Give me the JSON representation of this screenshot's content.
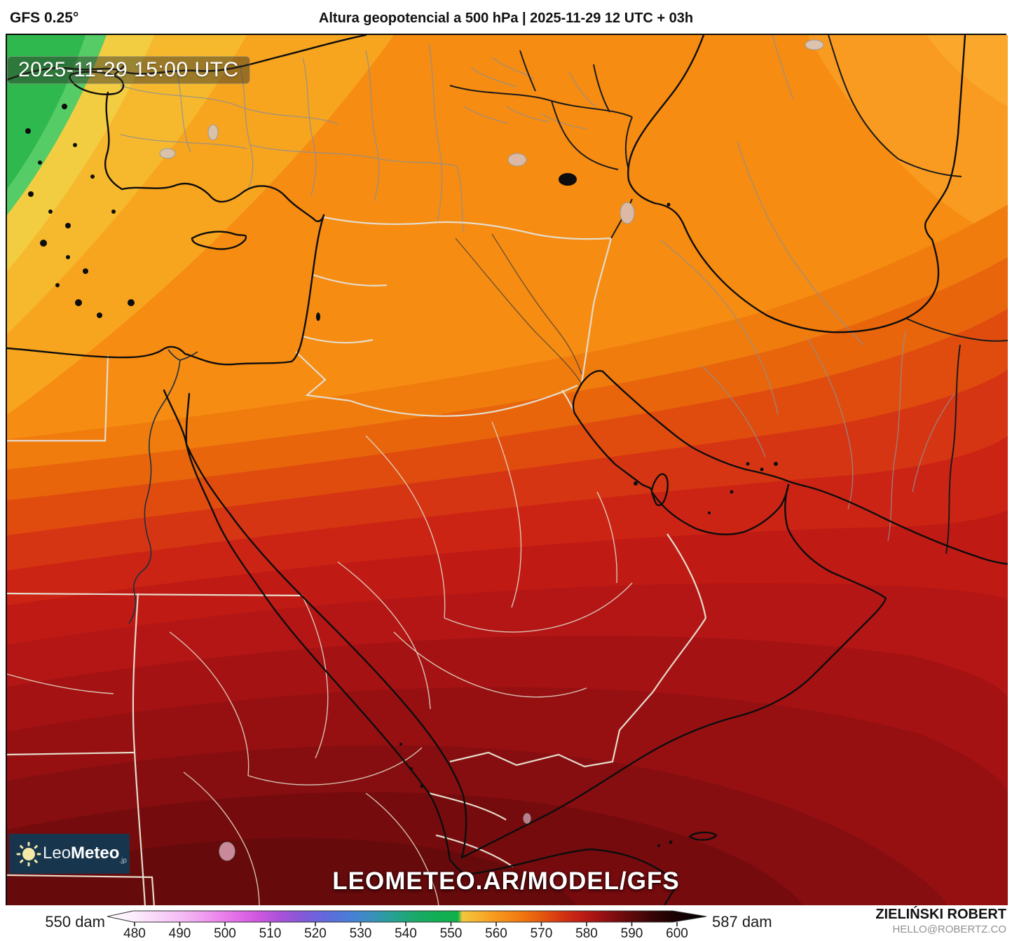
{
  "header": {
    "model": "GFS 0.25°",
    "title": "Altura geopotencial a 500 hPa | 2025-11-29 12 UTC + 03h"
  },
  "map": {
    "timestamp": "2025-11-29 15:00 UTC",
    "watermark": "LEOMETEO.AR/MODEL/GFS",
    "variable": "Altura geopotencial a 500 hPa",
    "min_value_label": "550 dam",
    "max_value_label": "587 dam"
  },
  "logo": {
    "part1": "Leo",
    "part2": "Meteo",
    "suffix": ".jp",
    "icon": "sun-icon",
    "bg_color": "#17354c"
  },
  "scale": {
    "min_label": "550 dam",
    "max_label": "587 dam",
    "unit": "dam",
    "ticks": [
      "480",
      "490",
      "500",
      "510",
      "520",
      "530",
      "540",
      "550",
      "560",
      "570",
      "580",
      "590",
      "600"
    ],
    "gradient": [
      {
        "v": 474,
        "c": "#ffffff"
      },
      {
        "v": 480,
        "c": "#fcecfc"
      },
      {
        "v": 486,
        "c": "#f8d2f8"
      },
      {
        "v": 492,
        "c": "#f3b2f3"
      },
      {
        "v": 497,
        "c": "#ee91ee"
      },
      {
        "v": 502,
        "c": "#e471e8"
      },
      {
        "v": 507,
        "c": "#d058e0"
      },
      {
        "v": 512,
        "c": "#ab52d9"
      },
      {
        "v": 517,
        "c": "#8558d8"
      },
      {
        "v": 522,
        "c": "#6368dc"
      },
      {
        "v": 527,
        "c": "#4a7cd9"
      },
      {
        "v": 532,
        "c": "#3b8ec0"
      },
      {
        "v": 537,
        "c": "#27a195"
      },
      {
        "v": 542,
        "c": "#1aa96a"
      },
      {
        "v": 547,
        "c": "#12ae53"
      },
      {
        "v": 551.5,
        "c": "#10b04b"
      },
      {
        "v": 552.5,
        "c": "#f2c73e"
      },
      {
        "v": 557,
        "c": "#f7ab29"
      },
      {
        "v": 561,
        "c": "#f6921a"
      },
      {
        "v": 566,
        "c": "#f0750f"
      },
      {
        "v": 571,
        "c": "#e1500e"
      },
      {
        "v": 575,
        "c": "#d23013"
      },
      {
        "v": 579,
        "c": "#bd1c14"
      },
      {
        "v": 583,
        "c": "#9d1213"
      },
      {
        "v": 587,
        "c": "#770c0e"
      },
      {
        "v": 591,
        "c": "#560809"
      },
      {
        "v": 595,
        "c": "#350405"
      },
      {
        "v": 599,
        "c": "#1d0202"
      },
      {
        "v": 606,
        "c": "#000000"
      }
    ]
  },
  "credits": {
    "name": "ZIELIŃSKI ROBERT",
    "email": "HELLO@ROBERTZ.CO"
  }
}
